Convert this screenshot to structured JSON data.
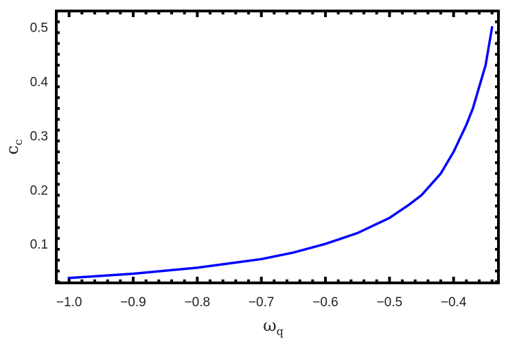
{
  "chart_data": {
    "type": "line",
    "title": "",
    "xlabel": "ω",
    "xlabel_sub": "q",
    "ylabel": "c",
    "ylabel_sub": "c",
    "xlim": [
      -1.02,
      -0.33
    ],
    "ylim": [
      0.028,
      0.53
    ],
    "xticks": [
      "-1.0",
      "-0.9",
      "-0.8",
      "-0.7",
      "-0.6",
      "-0.5",
      "-0.4"
    ],
    "yticks": [
      "0.1",
      "0.2",
      "0.3",
      "0.4",
      "0.5"
    ],
    "grid": false,
    "series": [
      {
        "color": "#0000ff",
        "x": [
          -1.0,
          -0.9,
          -0.8,
          -0.7,
          -0.65,
          -0.6,
          -0.55,
          -0.5,
          -0.47,
          -0.45,
          -0.42,
          -0.4,
          -0.38,
          -0.37,
          -0.36,
          -0.35,
          -0.34
        ],
        "y": [
          0.037,
          0.045,
          0.056,
          0.072,
          0.084,
          0.1,
          0.12,
          0.148,
          0.172,
          0.19,
          0.23,
          0.27,
          0.32,
          0.35,
          0.39,
          0.43,
          0.5
        ]
      }
    ]
  }
}
